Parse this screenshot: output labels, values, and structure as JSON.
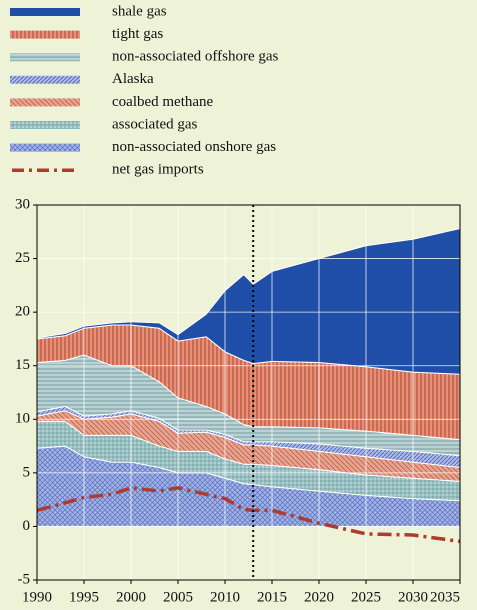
{
  "chart_data": {
    "type": "stacked_area",
    "x": [
      1990,
      1993,
      1995,
      1998,
      2000,
      2003,
      2005,
      2008,
      2010,
      2012,
      2013,
      2015,
      2020,
      2025,
      2030,
      2035
    ],
    "series": [
      {
        "name": "shale gas",
        "color": "#1f4fa8",
        "values": [
          0.1,
          0.2,
          0.2,
          0.2,
          0.3,
          0.5,
          0.6,
          2.1,
          5.7,
          8.0,
          7.4,
          8.4,
          9.7,
          11.3,
          12.4,
          13.6
        ]
      },
      {
        "name": "tight gas",
        "color": "#e4917a",
        "values": [
          2.2,
          2.3,
          2.5,
          3.8,
          3.8,
          5.0,
          5.3,
          6.5,
          5.8,
          6.0,
          5.9,
          6.1,
          6.1,
          6.0,
          5.9,
          6.1
        ]
      },
      {
        "name": "non-associated offshore gas",
        "color": "#bcd2d2",
        "values": [
          4.6,
          4.3,
          5.7,
          4.5,
          4.2,
          3.4,
          3.0,
          2.2,
          1.9,
          1.6,
          1.4,
          1.4,
          1.5,
          1.6,
          1.5,
          1.5
        ]
      },
      {
        "name": "Alaska",
        "color": "#aab8e2",
        "values": [
          0.4,
          0.4,
          0.3,
          0.3,
          0.3,
          0.3,
          0.3,
          0.2,
          0.3,
          0.3,
          0.3,
          0.4,
          0.7,
          0.8,
          1.0,
          1.1
        ]
      },
      {
        "name": "coalbed methane",
        "color": "#e6a490",
        "values": [
          0.5,
          1.0,
          1.5,
          1.7,
          2.0,
          2.3,
          1.7,
          1.8,
          2.0,
          1.8,
          1.8,
          1.8,
          1.7,
          1.7,
          1.5,
          1.3
        ]
      },
      {
        "name": "associated gas",
        "color": "#b4d0d0",
        "values": [
          2.5,
          2.3,
          2.0,
          2.5,
          2.5,
          2.0,
          2.0,
          2.0,
          1.8,
          1.8,
          1.9,
          2.0,
          2.0,
          1.9,
          1.9,
          1.8
        ]
      },
      {
        "name": "non-associated onshore gas",
        "color": "#a2b2e2",
        "values": [
          7.3,
          7.5,
          6.5,
          6.0,
          6.0,
          5.5,
          5.0,
          5.0,
          4.5,
          4.0,
          3.9,
          3.7,
          3.3,
          2.9,
          2.6,
          2.4
        ]
      },
      {
        "name": "net gas imports",
        "color": "#b03a2e",
        "type": "line",
        "values": [
          1.5,
          2.2,
          2.7,
          3.0,
          3.6,
          3.3,
          3.6,
          3.0,
          2.6,
          1.6,
          1.5,
          1.5,
          0.3,
          -0.7,
          -0.8,
          -1.4
        ]
      }
    ],
    "xlim": [
      1990,
      2035
    ],
    "xticks": [
      1990,
      1995,
      2000,
      2005,
      2010,
      2015,
      2020,
      2025,
      2030,
      2035
    ],
    "ylim": [
      -5,
      30
    ],
    "yticks": [
      -5,
      0,
      5,
      10,
      15,
      20,
      25,
      30
    ],
    "vline_x": 2013,
    "grid": true
  }
}
